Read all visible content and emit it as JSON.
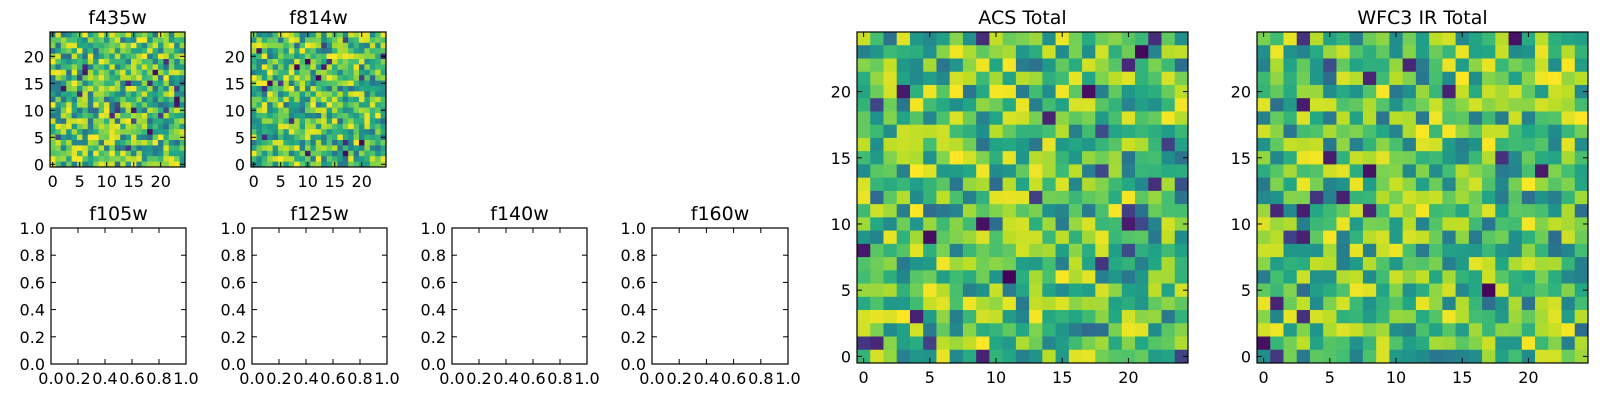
{
  "chart_data": [
    {
      "type": "heatmap",
      "title": "f435w",
      "xlim": [
        -0.5,
        24.5
      ],
      "ylim": [
        -0.5,
        24.5
      ],
      "xticks": [
        0,
        5,
        10,
        15,
        20
      ],
      "yticks": [
        0,
        5,
        10,
        15,
        20
      ],
      "colormap": "viridis",
      "grid_size": [
        25,
        25
      ],
      "description_values": "random noise image"
    },
    {
      "type": "heatmap",
      "title": "f814w",
      "xlim": [
        -0.5,
        24.5
      ],
      "ylim": [
        -0.5,
        24.5
      ],
      "xticks": [
        0,
        5,
        10,
        15,
        20
      ],
      "yticks": [
        0,
        5,
        10,
        15,
        20
      ],
      "colormap": "viridis",
      "grid_size": [
        25,
        25
      ]
    },
    {
      "type": "empty",
      "title": "f105w",
      "xlim": [
        0,
        1
      ],
      "ylim": [
        0,
        1
      ],
      "xticks": [
        0.0,
        0.2,
        0.4,
        0.6,
        0.8,
        1.0
      ],
      "yticks": [
        0.0,
        0.2,
        0.4,
        0.6,
        0.8,
        1.0
      ]
    },
    {
      "type": "empty",
      "title": "f125w",
      "xlim": [
        0,
        1
      ],
      "ylim": [
        0,
        1
      ],
      "xticks": [
        0.0,
        0.2,
        0.4,
        0.6,
        0.8,
        1.0
      ],
      "yticks": [
        0.0,
        0.2,
        0.4,
        0.6,
        0.8,
        1.0
      ]
    },
    {
      "type": "empty",
      "title": "f140w",
      "xlim": [
        0,
        1
      ],
      "ylim": [
        0,
        1
      ],
      "xticks": [
        0.0,
        0.2,
        0.4,
        0.6,
        0.8,
        1.0
      ],
      "yticks": [
        0.0,
        0.2,
        0.4,
        0.6,
        0.8,
        1.0
      ]
    },
    {
      "type": "empty",
      "title": "f160w",
      "xlim": [
        0,
        1
      ],
      "ylim": [
        0,
        1
      ],
      "xticks": [
        0.0,
        0.2,
        0.4,
        0.6,
        0.8,
        1.0
      ],
      "yticks": [
        0.0,
        0.2,
        0.4,
        0.6,
        0.8,
        1.0
      ]
    },
    {
      "type": "heatmap",
      "title": "ACS Total",
      "xlim": [
        -0.5,
        24.5
      ],
      "ylim": [
        -0.5,
        24.5
      ],
      "xticks": [
        0,
        5,
        10,
        15,
        20
      ],
      "yticks": [
        0,
        5,
        10,
        15,
        20
      ],
      "colormap": "viridis",
      "grid_size": [
        25,
        25
      ]
    },
    {
      "type": "heatmap",
      "title": "WFC3 IR Total",
      "xlim": [
        -0.5,
        24.5
      ],
      "ylim": [
        -0.5,
        24.5
      ],
      "xticks": [
        0,
        5,
        10,
        15,
        20
      ],
      "yticks": [
        0,
        5,
        10,
        15,
        20
      ],
      "colormap": "viridis",
      "grid_size": [
        25,
        25
      ]
    }
  ]
}
